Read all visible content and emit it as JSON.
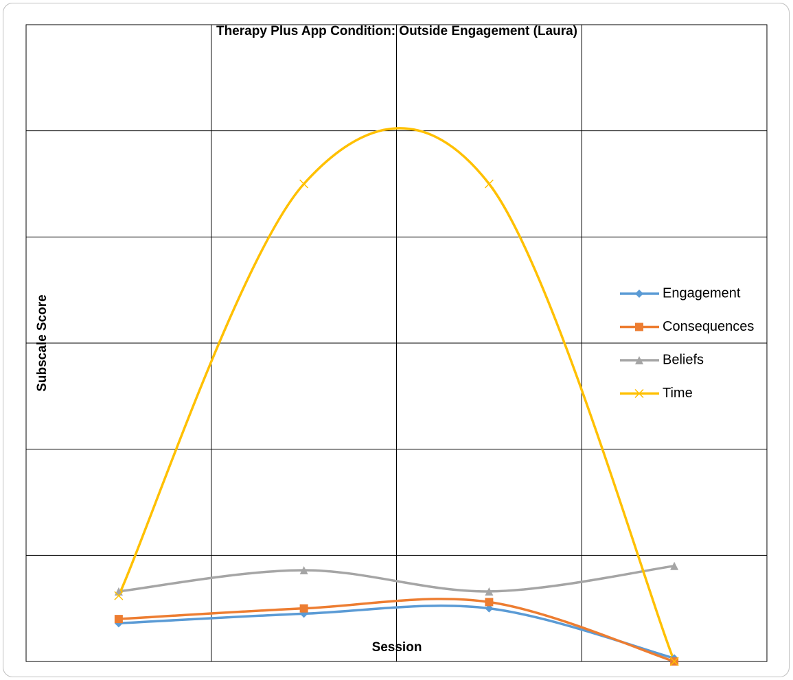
{
  "chart_data": {
    "type": "line",
    "title": "Therapy Plus App Condition: Outside Engagement (Laura)",
    "x_label": "Session",
    "y_label": "Subscale Score",
    "smooth": true,
    "grid": true,
    "ylim": [
      0,
      6
    ],
    "yticks": [
      0,
      1,
      2,
      3,
      4,
      5,
      6
    ],
    "legend": "right",
    "series": [
      {
        "name": "Engagement",
        "color": "#5b9bd5",
        "marker": "diamond",
        "values": [
          0.36,
          0.45,
          0.5,
          0.03
        ]
      },
      {
        "name": "Consequences",
        "color": "#ed7d31",
        "marker": "square",
        "values": [
          0.4,
          0.5,
          0.56,
          0.0
        ]
      },
      {
        "name": "Beliefs",
        "color": "#a5a5a5",
        "marker": "triangle",
        "values": [
          0.66,
          0.86,
          0.66,
          0.9
        ]
      },
      {
        "name": "Time",
        "color": "#ffc000",
        "marker": "x",
        "values": [
          0.62,
          4.5,
          4.5,
          0.0
        ]
      }
    ]
  }
}
